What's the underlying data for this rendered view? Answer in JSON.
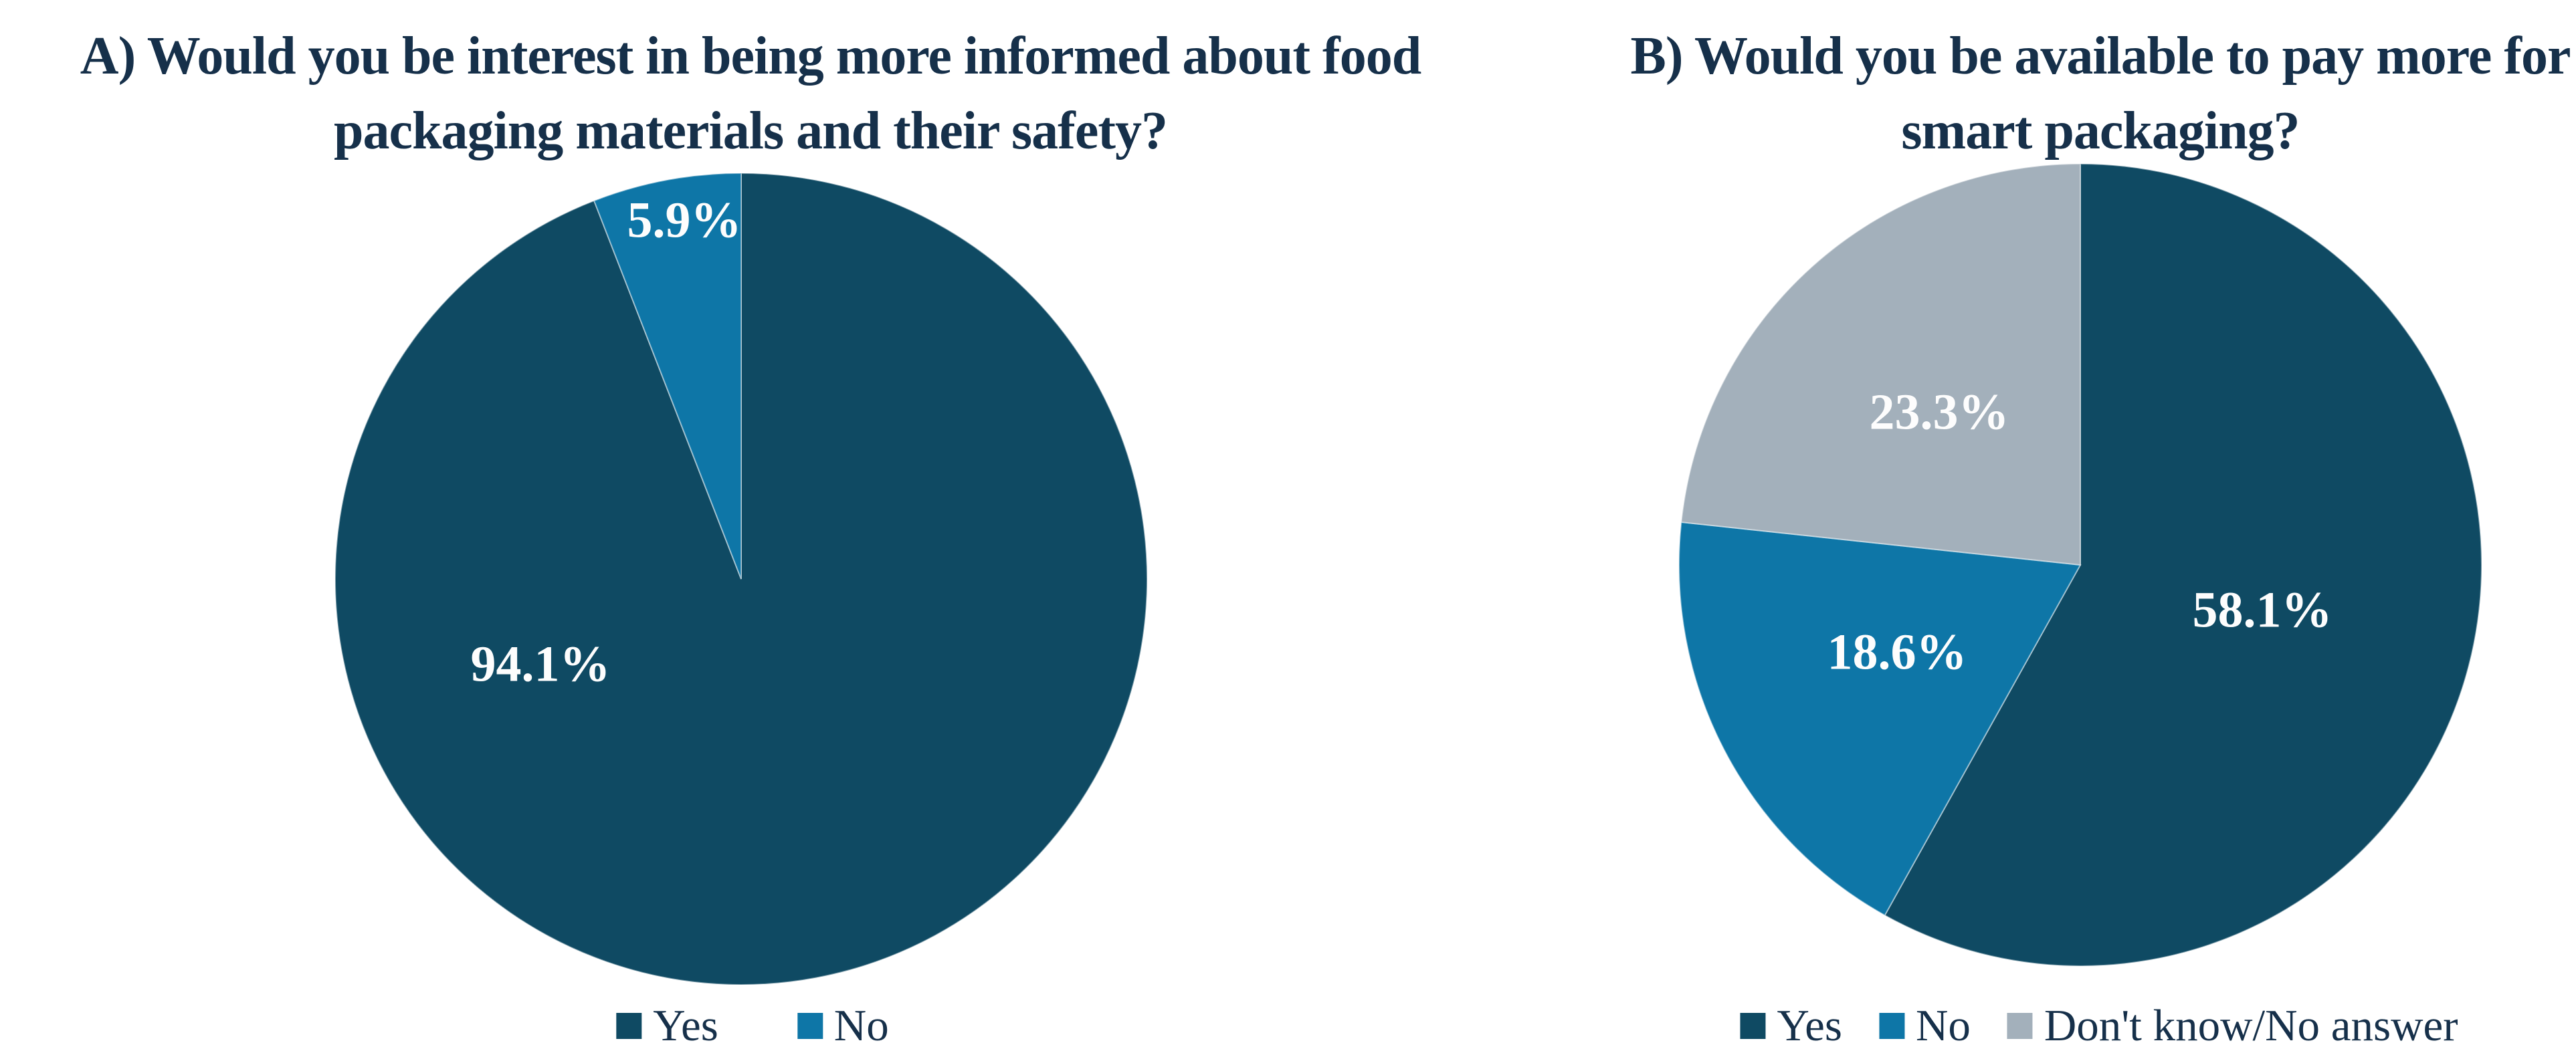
{
  "figure": {
    "background_color": "#FFFFFF",
    "title_color": "#16304A",
    "slice_label_color": "#FDFDFD"
  },
  "chart_data": [
    {
      "type": "pie",
      "panel": "A",
      "title": "A) Would you be interest in being more informed about food packaging materials and their safety?",
      "categories": [
        "Yes",
        "No"
      ],
      "values": [
        94.1,
        5.9
      ],
      "labels": [
        "94.1%",
        "5.9%"
      ],
      "colors": [
        "#0F4A63",
        "#0E76A7"
      ],
      "start_angle_deg": 0,
      "direction": "clockwise",
      "legend_position": "bottom"
    },
    {
      "type": "pie",
      "panel": "B",
      "title": "B) Would you be available to pay more for smart packaging?",
      "categories": [
        "Yes",
        "No",
        "Don't know/No answer"
      ],
      "values": [
        58.1,
        18.6,
        23.3
      ],
      "labels": [
        "58.1%",
        "18.6%",
        "23.3%"
      ],
      "colors": [
        "#0F4A63",
        "#0E76A7",
        "#A3B0BB"
      ],
      "start_angle_deg": 0,
      "direction": "clockwise",
      "legend_position": "bottom"
    }
  ]
}
